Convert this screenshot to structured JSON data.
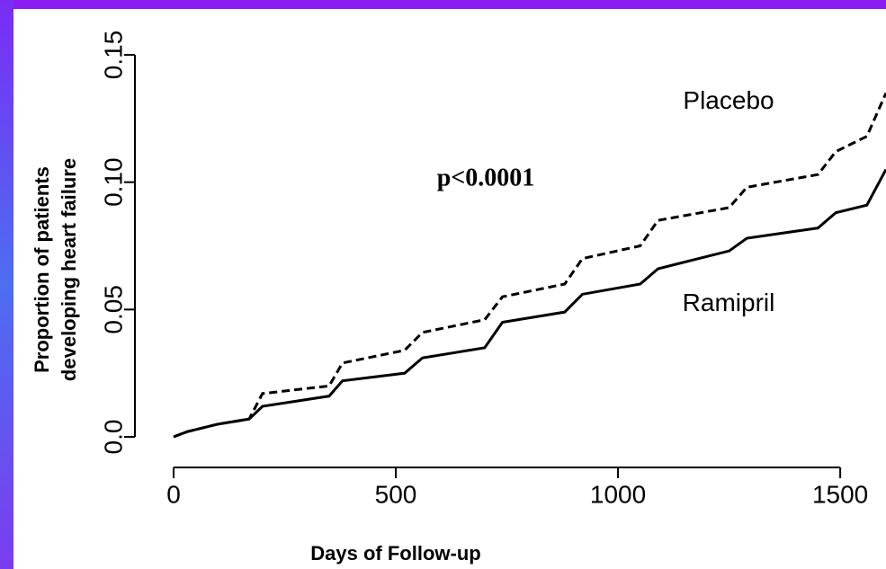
{
  "chart_data": {
    "type": "line",
    "x": [
      0,
      30,
      100,
      170,
      200,
      350,
      380,
      520,
      560,
      700,
      740,
      880,
      920,
      1050,
      1090,
      1250,
      1290,
      1450,
      1490,
      1560,
      1603
    ],
    "series": [
      {
        "name": "Placebo",
        "color": "#000000",
        "linestyle": "dashed",
        "values": [
          0,
          0.002,
          0.005,
          0.007,
          0.017,
          0.02,
          0.029,
          0.034,
          0.041,
          0.046,
          0.055,
          0.06,
          0.07,
          0.075,
          0.085,
          0.09,
          0.098,
          0.103,
          0.112,
          0.118,
          0.135
        ]
      },
      {
        "name": "Ramipril",
        "color": "#000000",
        "linestyle": "solid",
        "values": [
          0,
          0.002,
          0.005,
          0.007,
          0.012,
          0.016,
          0.022,
          0.025,
          0.031,
          0.035,
          0.045,
          0.049,
          0.056,
          0.06,
          0.066,
          0.073,
          0.078,
          0.082,
          0.088,
          0.091,
          0.105
        ]
      }
    ],
    "xlabel": "Days of Follow-up",
    "ylabel": [
      "Proportion of patients",
      "developing heart failure"
    ],
    "annotation": "p<0.0001",
    "xlim": [
      -87,
      1603
    ],
    "xticks": [
      0,
      500,
      1000,
      1500
    ],
    "ylim": [
      -0.012,
      0.168
    ],
    "yticks": [
      {
        "value": 0,
        "label": "0.0"
      },
      0.05,
      {
        "value": 0.1,
        "label": "0.10"
      },
      0.15
    ]
  }
}
